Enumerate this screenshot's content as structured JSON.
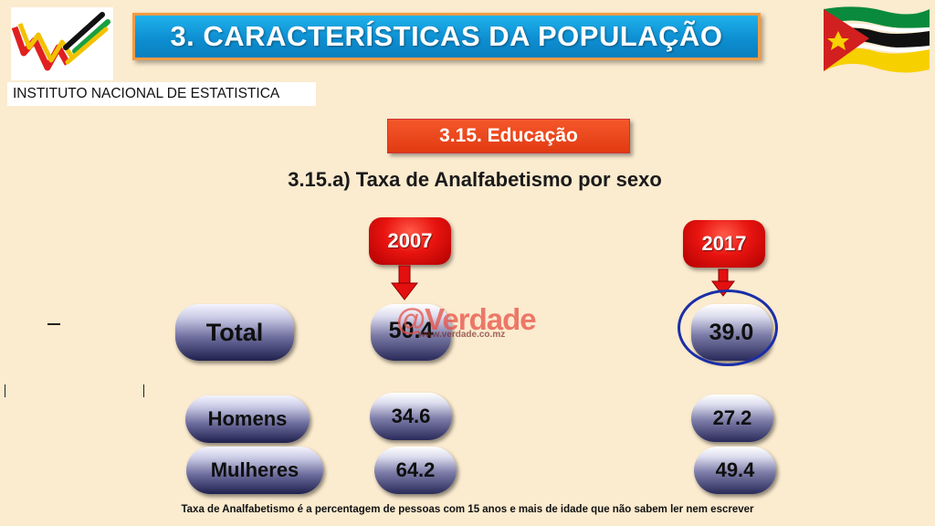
{
  "header": {
    "title": "3. CARACTERÍSTICAS DA POPULAÇÃO",
    "institute": "INSTITUTO NACIONAL DE ESTATISTICA"
  },
  "section": {
    "label": "3.15. Educação",
    "chart_title": "3.15.a) Taxa de Analfabetismo por  sexo"
  },
  "years": [
    "2007",
    "2017"
  ],
  "rows": [
    {
      "label": "Total",
      "v2007": "50.4",
      "v2017": "39.0"
    },
    {
      "label": "Homens",
      "v2007": "34.6",
      "v2017": "27.2"
    },
    {
      "label": "Mulheres",
      "v2007": "64.2",
      "v2017": "49.4"
    }
  ],
  "watermark": {
    "brand": "@Verdade",
    "url": "www.verdade.co.mz"
  },
  "footnote": "Taxa de Analfabetismo é a percentagem de pessoas com 15 anos e mais de idade que não sabem ler  nem escrever",
  "colors": {
    "background": "#fbebcf",
    "banner": "#0d8fd2",
    "section": "#e23a12",
    "year_tag": "#e81410",
    "highlight": "#1b2ea8"
  },
  "chart_data": {
    "type": "table",
    "title": "3.15.a) Taxa de Analfabetismo por  sexo",
    "columns": [
      "2007",
      "2017"
    ],
    "categories": [
      "Total",
      "Homens",
      "Mulheres"
    ],
    "series": [
      {
        "name": "2007",
        "values": [
          50.4,
          34.6,
          64.2
        ]
      },
      {
        "name": "2017",
        "values": [
          39.0,
          27.2,
          49.4
        ]
      }
    ]
  }
}
